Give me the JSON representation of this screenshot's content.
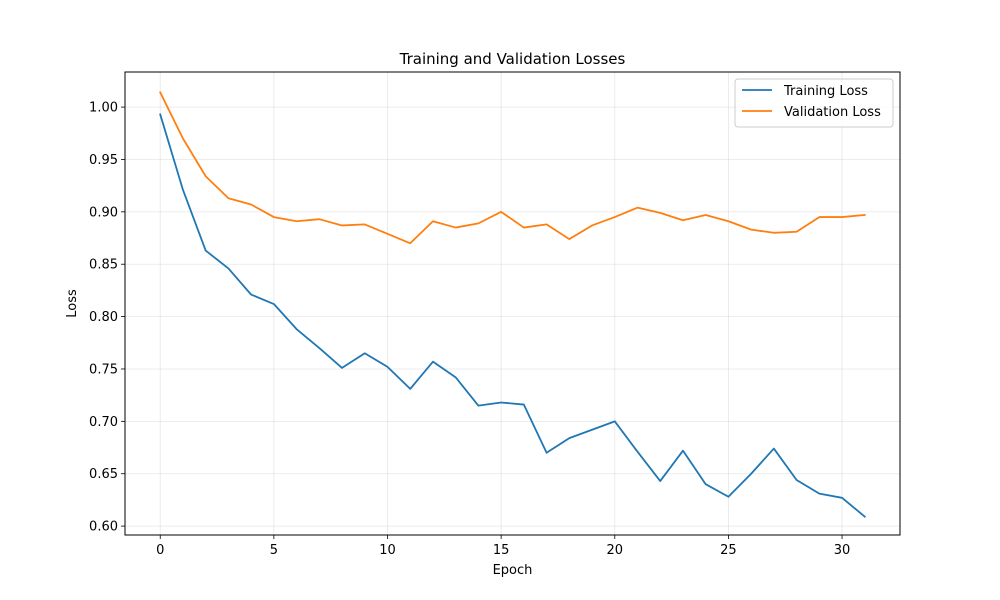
{
  "chart_data": {
    "type": "line",
    "title": "Training and Validation Losses",
    "xlabel": "Epoch",
    "ylabel": "Loss",
    "xlim": [
      -1.55,
      32.55
    ],
    "ylim": [
      0.5915,
      1.0335
    ],
    "xticks": [
      0,
      5,
      10,
      15,
      20,
      25,
      30
    ],
    "yticks": [
      0.6,
      0.65,
      0.7,
      0.75,
      0.8,
      0.85,
      0.9,
      0.95,
      1.0
    ],
    "ytick_labels": [
      "0.60",
      "0.65",
      "0.70",
      "0.75",
      "0.80",
      "0.85",
      "0.90",
      "0.95",
      "1.00"
    ],
    "grid": true,
    "legend_position": "top-right",
    "x": [
      0,
      1,
      2,
      3,
      4,
      5,
      6,
      7,
      8,
      9,
      10,
      11,
      12,
      13,
      14,
      15,
      16,
      17,
      18,
      19,
      20,
      21,
      22,
      23,
      24,
      25,
      26,
      27,
      28,
      29,
      30,
      31
    ],
    "series": [
      {
        "name": "Training Loss",
        "color": "#1f77b4",
        "values": [
          0.993,
          0.921,
          0.863,
          0.846,
          0.821,
          0.812,
          0.788,
          0.77,
          0.751,
          0.765,
          0.752,
          0.731,
          0.757,
          0.742,
          0.715,
          0.718,
          0.716,
          0.67,
          0.684,
          0.692,
          0.7,
          0.671,
          0.643,
          0.672,
          0.64,
          0.628,
          0.65,
          0.674,
          0.644,
          0.631,
          0.627,
          0.609
        ]
      },
      {
        "name": "Validation Loss",
        "color": "#ff7f0e",
        "values": [
          1.014,
          0.97,
          0.934,
          0.913,
          0.907,
          0.895,
          0.891,
          0.893,
          0.887,
          0.888,
          0.879,
          0.87,
          0.891,
          0.885,
          0.889,
          0.9,
          0.885,
          0.888,
          0.874,
          0.887,
          0.895,
          0.904,
          0.899,
          0.892,
          0.897,
          0.891,
          0.883,
          0.88,
          0.881,
          0.895,
          0.895,
          0.897
        ]
      }
    ]
  }
}
